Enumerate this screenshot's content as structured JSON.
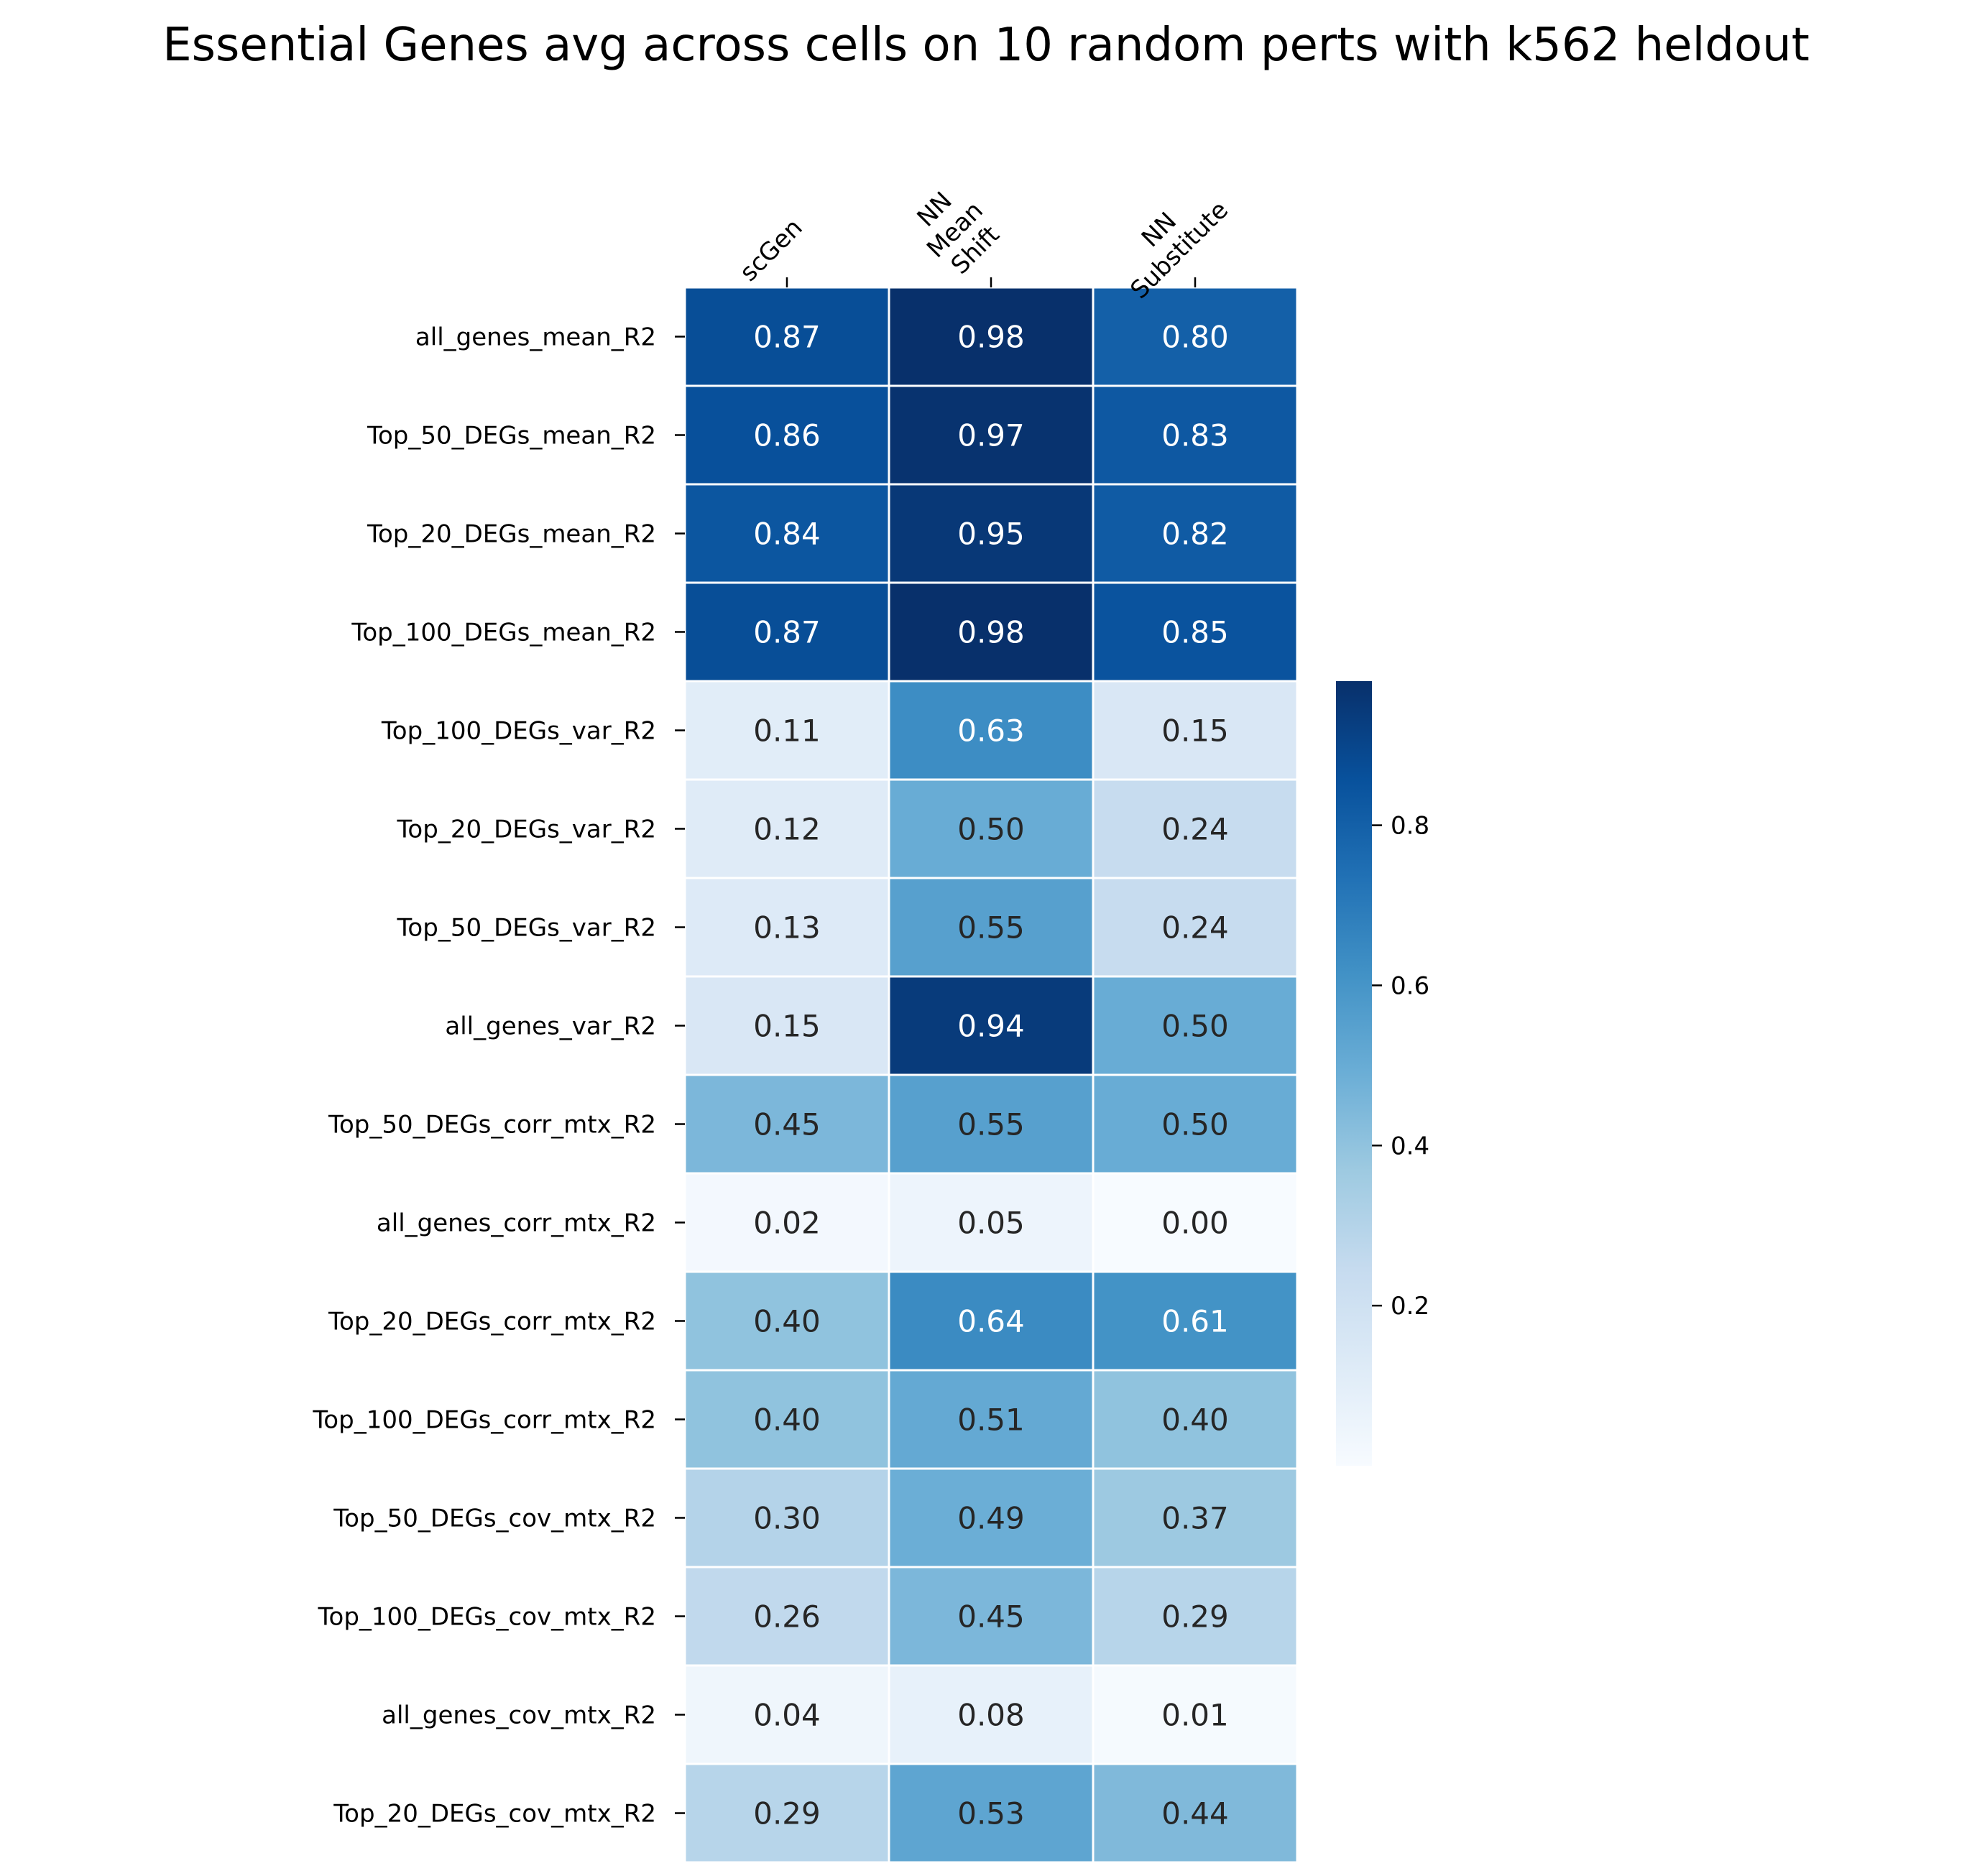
{
  "chart_data": {
    "type": "heatmap",
    "title": "Essential Genes avg across cells on 10 random perts with k562 heldout",
    "columns": [
      [
        "scGen"
      ],
      [
        "NN",
        "Mean",
        "Shift"
      ],
      [
        "NN",
        "Substitute"
      ]
    ],
    "rows": [
      "all_genes_mean_R2",
      "Top_50_DEGs_mean_R2",
      "Top_20_DEGs_mean_R2",
      "Top_100_DEGs_mean_R2",
      "Top_100_DEGs_var_R2",
      "Top_20_DEGs_var_R2",
      "Top_50_DEGs_var_R2",
      "all_genes_var_R2",
      "Top_50_DEGs_corr_mtx_R2",
      "all_genes_corr_mtx_R2",
      "Top_20_DEGs_corr_mtx_R2",
      "Top_100_DEGs_corr_mtx_R2",
      "Top_50_DEGs_cov_mtx_R2",
      "Top_100_DEGs_cov_mtx_R2",
      "all_genes_cov_mtx_R2",
      "Top_20_DEGs_cov_mtx_R2"
    ],
    "values": [
      [
        0.87,
        0.98,
        0.8
      ],
      [
        0.86,
        0.97,
        0.83
      ],
      [
        0.84,
        0.95,
        0.82
      ],
      [
        0.87,
        0.98,
        0.85
      ],
      [
        0.11,
        0.63,
        0.15
      ],
      [
        0.12,
        0.5,
        0.24
      ],
      [
        0.13,
        0.55,
        0.24
      ],
      [
        0.15,
        0.94,
        0.5
      ],
      [
        0.45,
        0.55,
        0.5
      ],
      [
        0.02,
        0.05,
        0.0
      ],
      [
        0.4,
        0.64,
        0.61
      ],
      [
        0.4,
        0.51,
        0.4
      ],
      [
        0.3,
        0.49,
        0.37
      ],
      [
        0.26,
        0.45,
        0.29
      ],
      [
        0.04,
        0.08,
        0.01
      ],
      [
        0.29,
        0.53,
        0.44
      ]
    ],
    "colormap": "Blues",
    "vmin": 0.0,
    "vmax": 0.98,
    "colorbar_ticks": [
      0.2,
      0.4,
      0.6,
      0.8
    ],
    "value_format": "2 decimals"
  }
}
